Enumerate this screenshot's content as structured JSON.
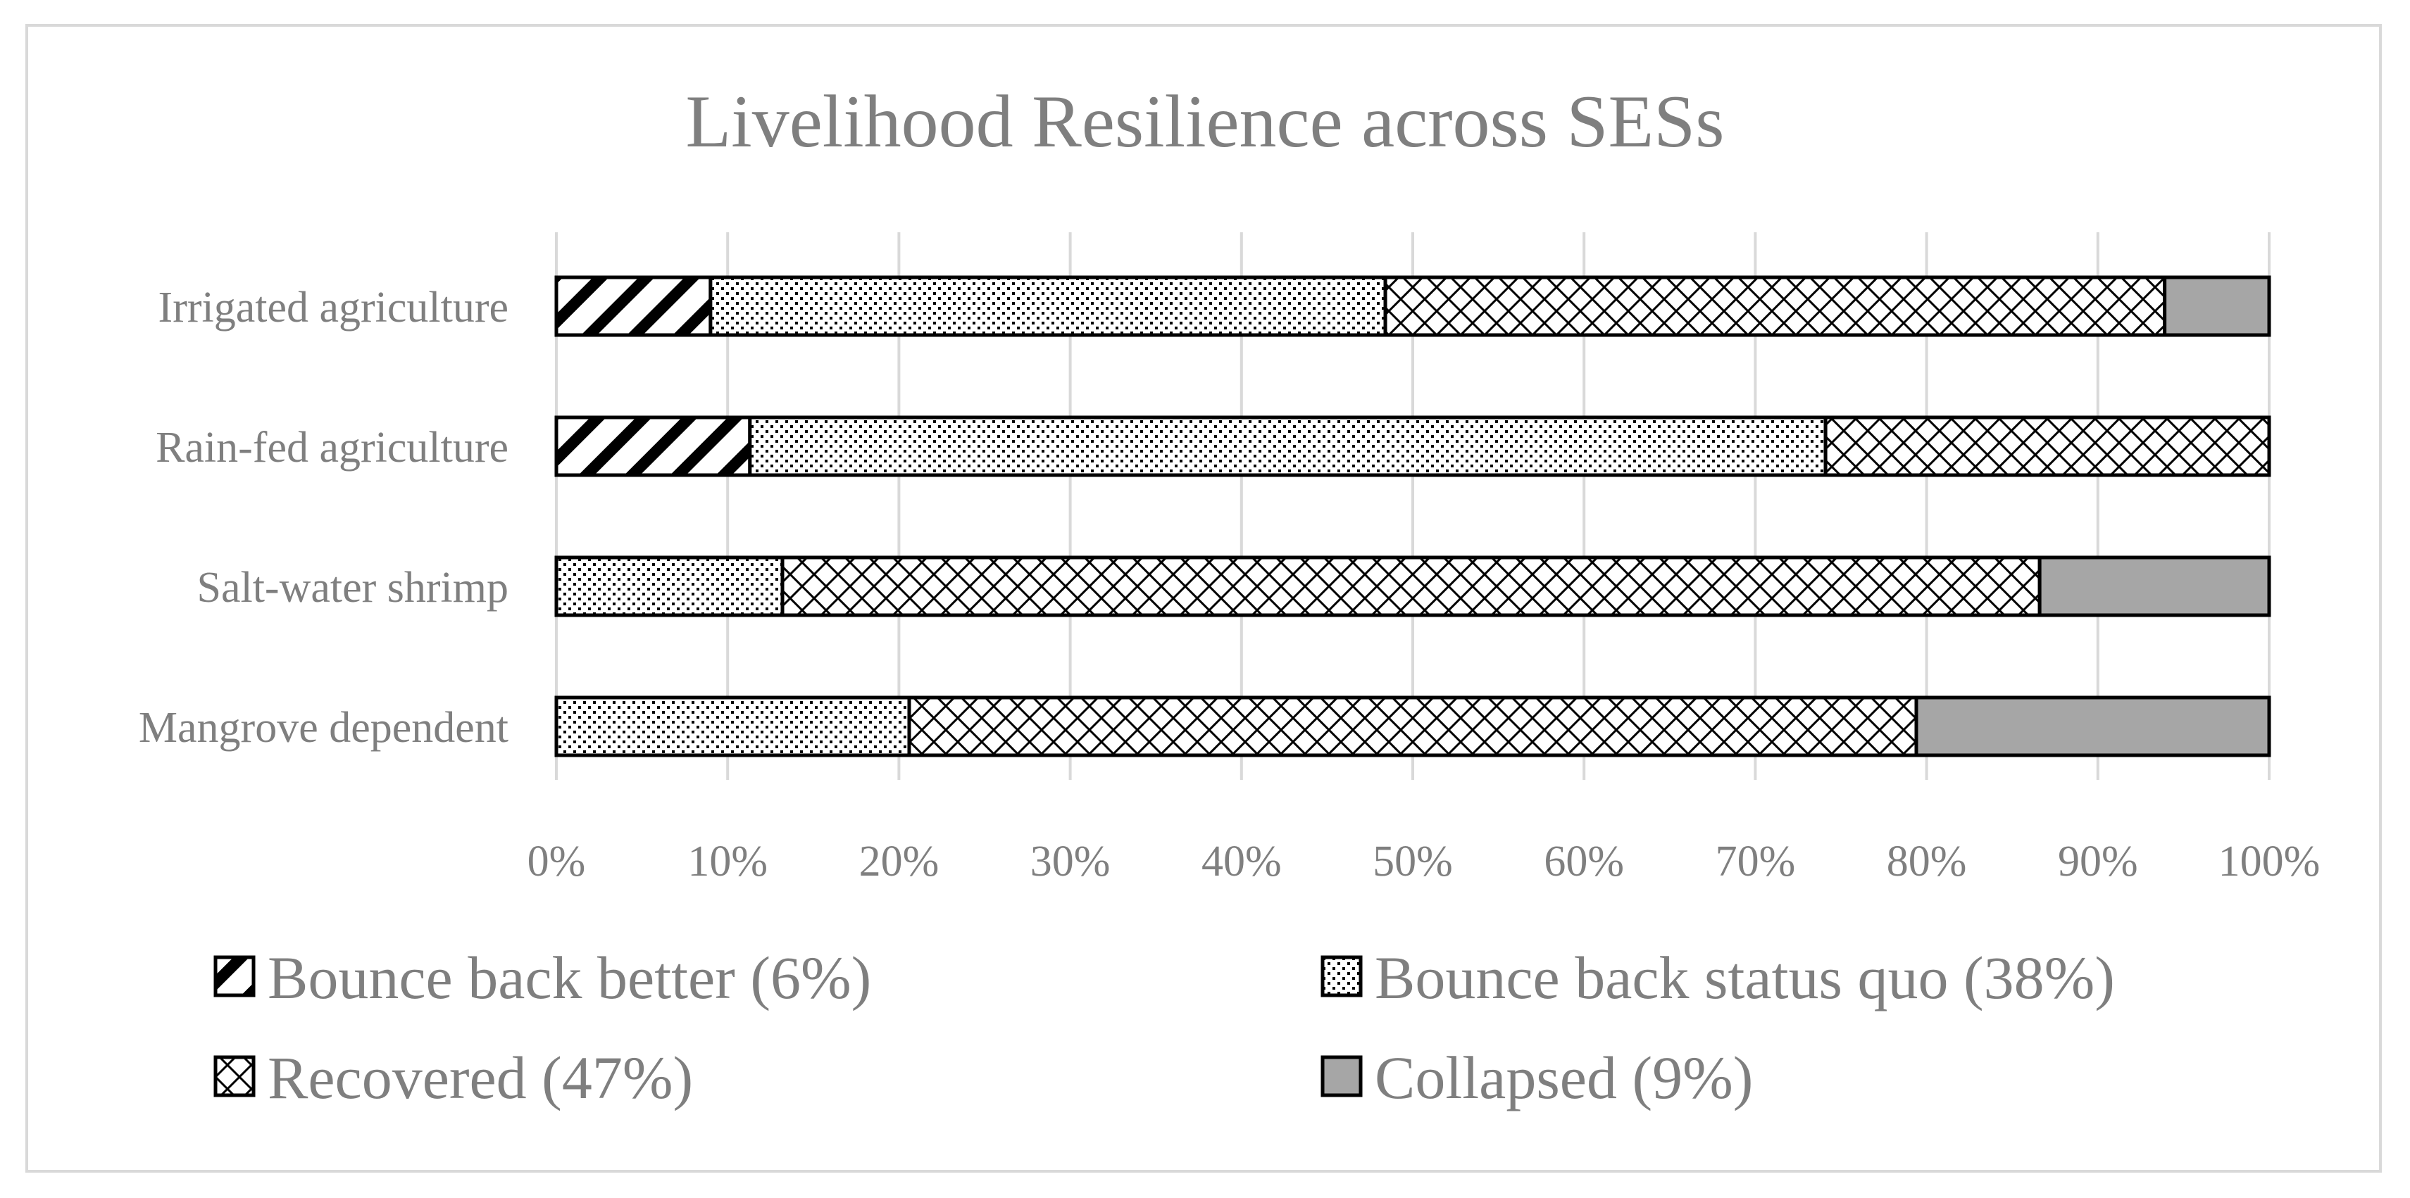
{
  "chart_data": {
    "type": "bar",
    "orientation": "horizontal",
    "stacked": "percent",
    "title": "Livelihood Resilience across SESs",
    "xlabel": "",
    "ylabel": "",
    "xlim": [
      0,
      100
    ],
    "grid": "vertical",
    "legend_position": "bottom",
    "categories": [
      "Irrigated agriculture",
      "Rain-fed agriculture",
      "Salt-water shrimp",
      "Mangrove dependent"
    ],
    "tick_labels": [
      "0%",
      "10%",
      "20%",
      "30%",
      "40%",
      "50%",
      "60%",
      "70%",
      "80%",
      "90%",
      "100%"
    ],
    "series": [
      {
        "name": "Bounce back better (6%)",
        "pattern": "diagonal-stripes",
        "values": [
          9,
          11.3,
          0,
          0
        ]
      },
      {
        "name": "Bounce back status quo (38%)",
        "pattern": "dots",
        "values": [
          39.4,
          62.8,
          13.2,
          20.6
        ]
      },
      {
        "name": "Recovered (47%)",
        "pattern": "crosshatch",
        "values": [
          45.5,
          25.9,
          73.4,
          58.8
        ]
      },
      {
        "name": "Collapsed (9%)",
        "pattern": "solid",
        "color": "#a6a6a6",
        "values": [
          6.1,
          0,
          13.4,
          20.6
        ]
      }
    ]
  }
}
